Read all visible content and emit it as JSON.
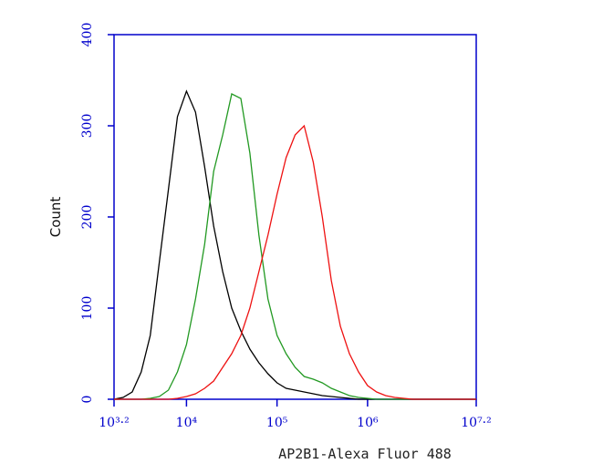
{
  "chart_data": {
    "type": "line",
    "xlabel": "AP2B1-Alexa Fluor 488",
    "ylabel": "Count",
    "xscale": "log",
    "axis_color": "#0000cc",
    "xlim": [
      1584.893,
      15848932
    ],
    "ylim": [
      0,
      400
    ],
    "yticks": [
      0,
      100,
      200,
      300,
      400
    ],
    "xticks": [
      {
        "value": 1584.893,
        "label": "10³·²"
      },
      {
        "value": 10000,
        "label": "10⁴"
      },
      {
        "value": 100000,
        "label": "10⁵"
      },
      {
        "value": 1000000,
        "label": "10⁶"
      },
      {
        "value": 15848932,
        "label": "10⁷·²"
      }
    ],
    "x": [
      1585,
      1995,
      2512,
      3162,
      3981,
      5012,
      6310,
      7943,
      10000,
      12589,
      15849,
      19953,
      25119,
      31623,
      39811,
      50119,
      63096,
      79433,
      100000,
      125893,
      158489,
      199526,
      251189,
      316228,
      398107,
      501187,
      630957,
      794328,
      1000000,
      1258925,
      1584893,
      1995262,
      2511886,
      3162278,
      3981072,
      5011872,
      6309573,
      7943282,
      10000000,
      12589254,
      15848932
    ],
    "series": [
      {
        "color": "#000000",
        "values": [
          0,
          2,
          8,
          30,
          70,
          150,
          230,
          310,
          338,
          315,
          255,
          190,
          140,
          100,
          75,
          55,
          40,
          28,
          18,
          12,
          10,
          8,
          6,
          4,
          3,
          2,
          1,
          0,
          0,
          0,
          0,
          0,
          0,
          0,
          0,
          0,
          0,
          0,
          0,
          0,
          0
        ]
      },
      {
        "color": "#229922",
        "values": [
          0,
          0,
          0,
          0,
          1,
          3,
          10,
          30,
          60,
          110,
          170,
          250,
          290,
          335,
          330,
          270,
          180,
          110,
          70,
          50,
          35,
          25,
          22,
          18,
          12,
          8,
          4,
          2,
          1,
          0,
          0,
          0,
          0,
          0,
          0,
          0,
          0,
          0,
          0,
          0,
          0
        ]
      },
      {
        "color": "#ee1111",
        "values": [
          0,
          0,
          0,
          0,
          0,
          0,
          0,
          1,
          3,
          6,
          12,
          20,
          35,
          50,
          70,
          100,
          140,
          180,
          225,
          265,
          290,
          300,
          260,
          200,
          130,
          80,
          50,
          30,
          15,
          8,
          4,
          2,
          1,
          0,
          0,
          0,
          0,
          0,
          0,
          0,
          0
        ]
      }
    ]
  }
}
